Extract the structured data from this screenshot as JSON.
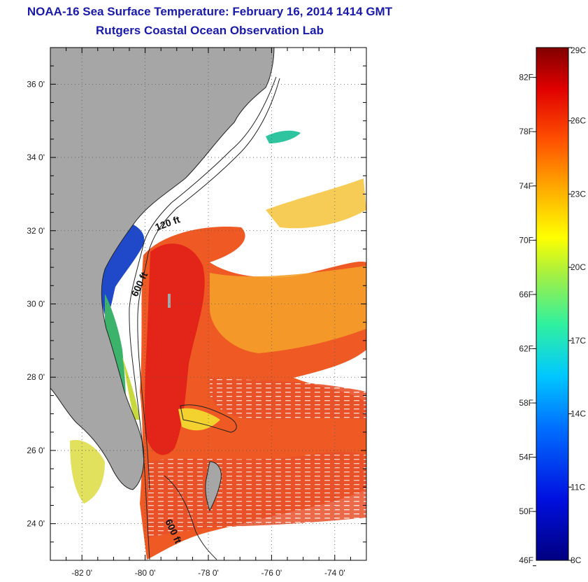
{
  "title": {
    "line1": "NOAA-16 Sea Surface Temperature:  February 16, 2014 1414 GMT",
    "line2": "Rutgers Coastal Ocean Observation Lab"
  },
  "map": {
    "lon_range": [
      -83,
      -73
    ],
    "lat_range": [
      23,
      37
    ],
    "lat_labels": [
      {
        "value": 36,
        "text": "36 0'"
      },
      {
        "value": 34,
        "text": "34 0'"
      },
      {
        "value": 32,
        "text": "32 0'"
      },
      {
        "value": 30,
        "text": "30 0'"
      },
      {
        "value": 28,
        "text": "28 0'"
      },
      {
        "value": 26,
        "text": "26 0'"
      },
      {
        "value": 24,
        "text": "24 0'"
      }
    ],
    "lon_labels": [
      {
        "value": -82,
        "text": "-82 0'"
      },
      {
        "value": -80,
        "text": "-80 0'"
      },
      {
        "value": -78,
        "text": "-78 0'"
      },
      {
        "value": -76,
        "text": "-76 0'"
      },
      {
        "value": -74,
        "text": "-74 0'"
      }
    ],
    "contour_labels": [
      "120 ft",
      "600 ft",
      "600 ft"
    ],
    "colors": {
      "land": "#a6a6a6",
      "cloud": "#ffffff",
      "cold": "#1f3fbf",
      "gulf_stream": "#e8391c",
      "warm": "#f07a1e",
      "mild": "#f5c518"
    }
  },
  "colorbar": {
    "fahrenheit_labels": [
      "82F",
      "78F",
      "74F",
      "70F",
      "66F",
      "62F",
      "58F",
      "54F",
      "50F",
      "46F"
    ],
    "celsius_labels": [
      "29C",
      "26C",
      "23C",
      "20C",
      "17C",
      "14C",
      "11C",
      "8C"
    ],
    "range_c": [
      8,
      29
    ]
  }
}
